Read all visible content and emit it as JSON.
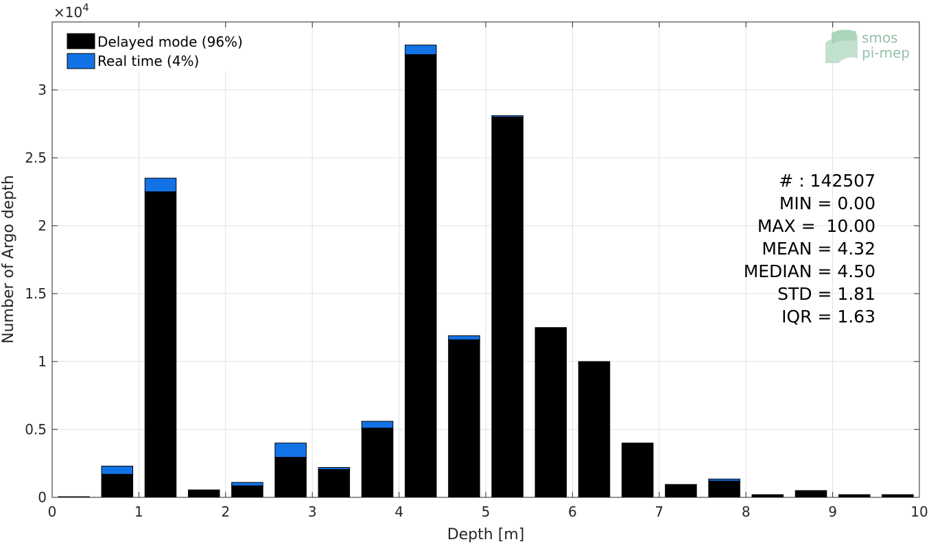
{
  "chart_data": {
    "type": "bar",
    "stacked": true,
    "xlabel": "Depth [m]",
    "ylabel": "Number of Argo depth",
    "xlim": [
      0,
      10
    ],
    "ylim": [
      0,
      35000
    ],
    "y_multiplier_label": "×10",
    "y_multiplier_exponent": "4",
    "xticks": [
      0,
      1,
      2,
      3,
      4,
      5,
      6,
      7,
      8,
      9,
      10
    ],
    "yticks": [
      0,
      5000,
      10000,
      15000,
      20000,
      25000,
      30000
    ],
    "ytick_labels": [
      "0",
      "0.5",
      "1",
      "1.5",
      "2",
      "2.5",
      "3"
    ],
    "grid": true,
    "bar_width": 0.36,
    "x": [
      0.25,
      0.75,
      1.25,
      1.75,
      2.25,
      2.75,
      3.25,
      3.75,
      4.25,
      4.75,
      5.25,
      5.75,
      6.25,
      6.75,
      7.25,
      7.75,
      8.25,
      8.75,
      9.25,
      9.75
    ],
    "series": [
      {
        "name": "Delayed mode (96%)",
        "color": "#000000",
        "values": [
          50,
          1700,
          22500,
          550,
          850,
          2950,
          2050,
          5100,
          32600,
          11600,
          28000,
          12500,
          10000,
          4000,
          950,
          1200,
          200,
          500,
          200,
          200
        ]
      },
      {
        "name": "Real time (4%)",
        "color": "#1273e6",
        "values": [
          0,
          600,
          1000,
          0,
          250,
          1050,
          150,
          500,
          700,
          300,
          100,
          0,
          0,
          0,
          0,
          150,
          0,
          0,
          0,
          0
        ]
      }
    ],
    "legend_position": "top-left",
    "annotations": [
      "# : 142507",
      "MIN = 0.00",
      "MAX =  10.00",
      "MEAN = 4.32",
      "MEDIAN = 4.50",
      "STD = 1.81",
      "IQR = 1.63"
    ]
  },
  "logo": {
    "line1": "smos",
    "line2": "pi-mep",
    "color": "#7fb69a"
  }
}
